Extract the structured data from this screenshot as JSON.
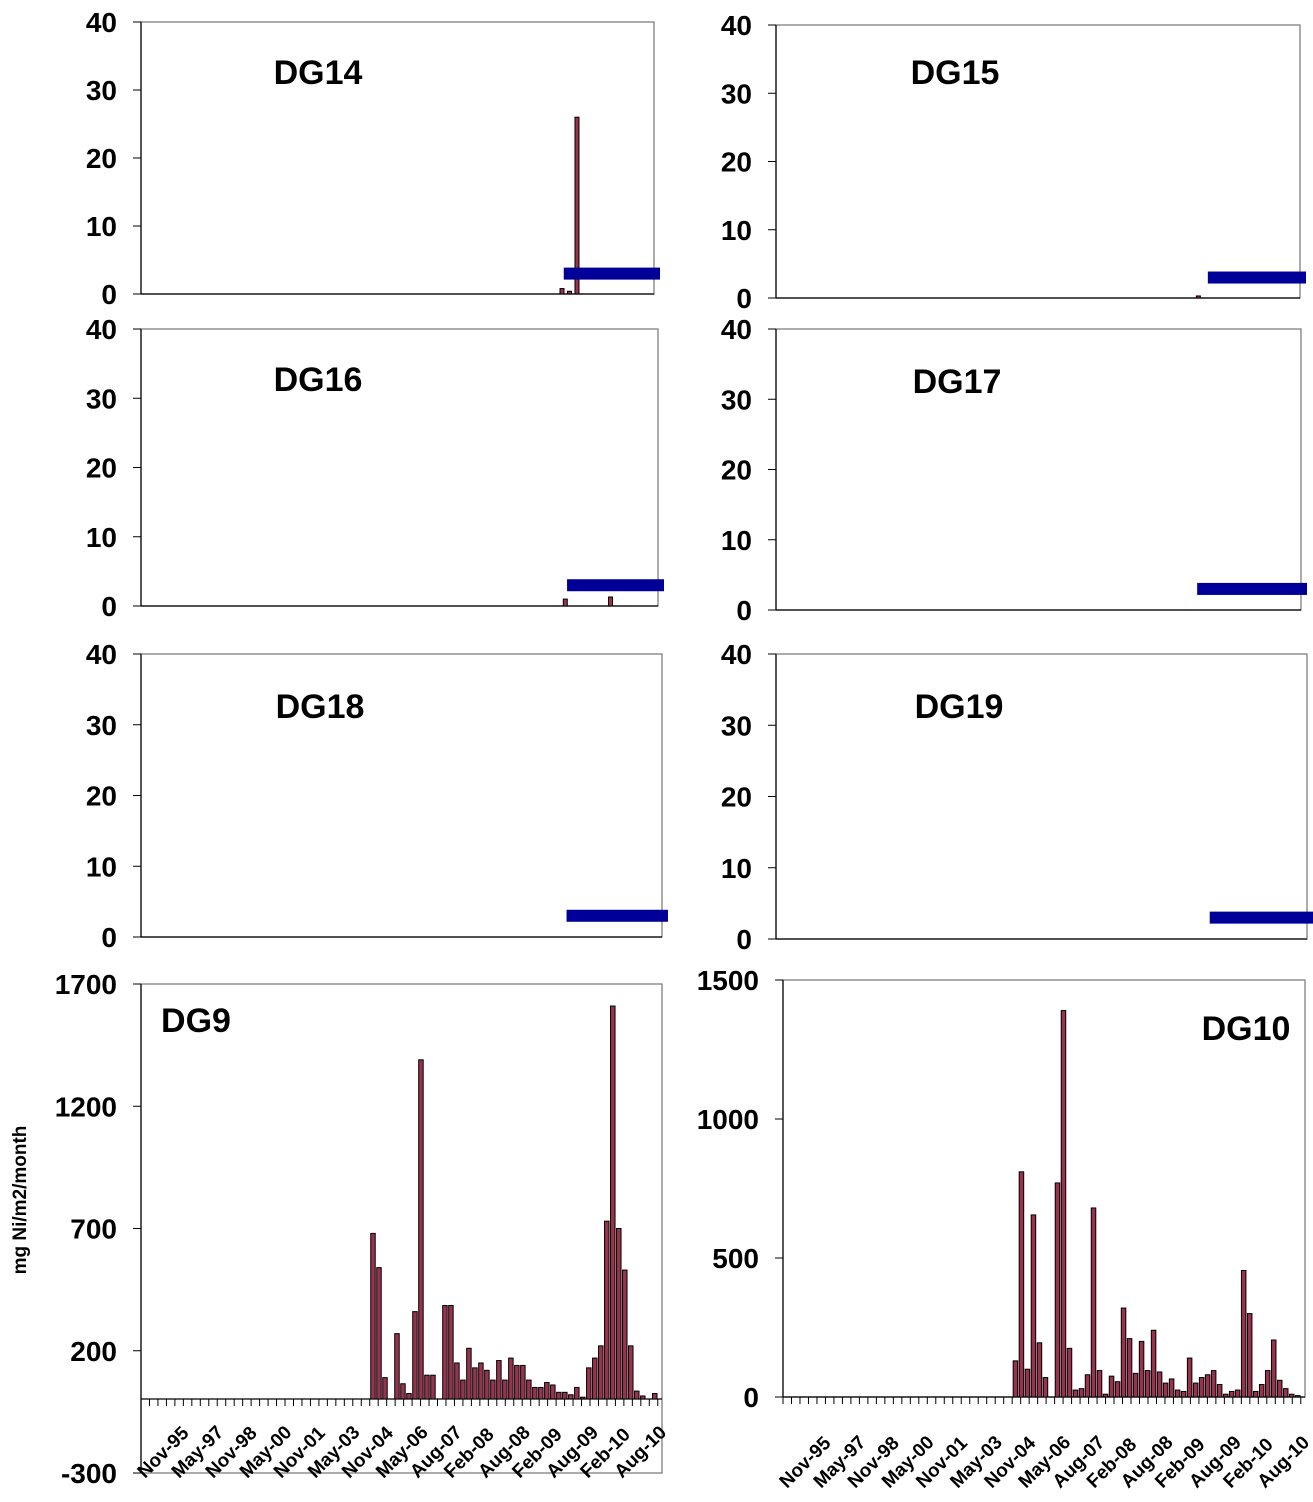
{
  "colors": {
    "bar_fill": "#99334d",
    "bar_stroke": "#000000",
    "limit_fill": "#000099",
    "frame": "#808080"
  },
  "x_tick_labels": [
    "Nov-95",
    "May-97",
    "Nov-98",
    "May-00",
    "Nov-01",
    "May-03",
    "Nov-04",
    "May-06",
    "Aug-07",
    "Feb-08",
    "Aug-08",
    "Feb-09",
    "Aug-09",
    "Feb-10",
    "Aug-10"
  ],
  "chart_data": [
    {
      "type": "bar",
      "title": "DG14",
      "ylim": [
        0,
        40
      ],
      "yticks": [
        0,
        10,
        20,
        30,
        40
      ],
      "bars": [
        {
          "month": 112,
          "value": 0.8
        },
        {
          "month": 114,
          "value": 0.4
        },
        {
          "month": 116,
          "value": 26
        }
      ],
      "limit_band": {
        "value": 3,
        "start_month": 113,
        "end_month": 134
      }
    },
    {
      "type": "bar",
      "title": "DG15",
      "ylim": [
        0,
        40
      ],
      "yticks": [
        0,
        10,
        20,
        30,
        40
      ],
      "bars": [
        {
          "month": 110,
          "value": 0.3
        }
      ],
      "limit_band": {
        "value": 3,
        "start_month": 113,
        "end_month": 134
      }
    },
    {
      "type": "bar",
      "title": "DG16",
      "ylim": [
        0,
        40
      ],
      "yticks": [
        0,
        10,
        20,
        30,
        40
      ],
      "bars": [
        {
          "month": 112,
          "value": 1
        },
        {
          "month": 124,
          "value": 1.3
        }
      ],
      "limit_band": {
        "value": 3,
        "start_month": 113,
        "end_month": 134
      }
    },
    {
      "type": "bar",
      "title": "DG17",
      "ylim": [
        0,
        40
      ],
      "yticks": [
        0,
        10,
        20,
        30,
        40
      ],
      "bars": [],
      "limit_band": {
        "value": 3,
        "start_month": 110,
        "end_month": 134
      }
    },
    {
      "type": "bar",
      "title": "DG18",
      "ylim": [
        0,
        40
      ],
      "yticks": [
        0,
        10,
        20,
        30,
        40
      ],
      "bars": [],
      "limit_band": {
        "value": 3,
        "start_month": 112,
        "end_month": 134
      }
    },
    {
      "type": "bar",
      "title": "DG19",
      "ylim": [
        0,
        40
      ],
      "yticks": [
        0,
        10,
        20,
        30,
        40
      ],
      "bars": [],
      "limit_band": {
        "value": 3,
        "start_month": 112,
        "end_month": 134
      }
    },
    {
      "type": "bar",
      "title": "DG9",
      "ylabel": "mg Ni/m2/month",
      "ylim": [
        -300,
        1700
      ],
      "yticks": [
        -300,
        200,
        700,
        1200,
        1700
      ],
      "x_tick_labels": [
        "Nov-95",
        "May-97",
        "Nov-98",
        "May-00",
        "Nov-01",
        "May-03",
        "Nov-04",
        "May-06",
        "Aug-07",
        "Feb-08",
        "Aug-08",
        "Feb-09",
        "Aug-09",
        "Feb-10",
        "Aug-10"
      ],
      "start_month": 0,
      "values": [
        680,
        540,
        90,
        0,
        270,
        65,
        25,
        360,
        1390,
        100,
        100,
        0,
        385,
        385,
        150,
        80,
        210,
        130,
        150,
        120,
        80,
        160,
        80,
        170,
        140,
        140,
        80,
        50,
        50,
        70,
        60,
        30,
        30,
        20,
        50,
        10,
        130,
        170,
        220,
        730,
        1610,
        700,
        530,
        220,
        35,
        15,
        0,
        25
      ]
    },
    {
      "type": "bar",
      "title": "DG10",
      "ylim": [
        0,
        1500
      ],
      "yticks": [
        0,
        500,
        1000,
        1500
      ],
      "x_tick_labels": [
        "Nov-95",
        "May-97",
        "Nov-98",
        "May-00",
        "Nov-01",
        "May-03",
        "Nov-04",
        "May-06",
        "Aug-07",
        "Feb-08",
        "Aug-08",
        "Feb-09",
        "Aug-09",
        "Feb-10",
        "Aug-10"
      ],
      "start_month": 0,
      "values": [
        130,
        810,
        100,
        655,
        195,
        70,
        0,
        770,
        1390,
        175,
        25,
        30,
        80,
        680,
        95,
        10,
        75,
        55,
        320,
        210,
        85,
        200,
        95,
        240,
        90,
        50,
        65,
        25,
        20,
        140,
        50,
        70,
        80,
        95,
        45,
        10,
        20,
        25,
        455,
        300,
        20,
        45,
        95,
        205,
        60,
        30,
        10,
        5
      ]
    }
  ]
}
